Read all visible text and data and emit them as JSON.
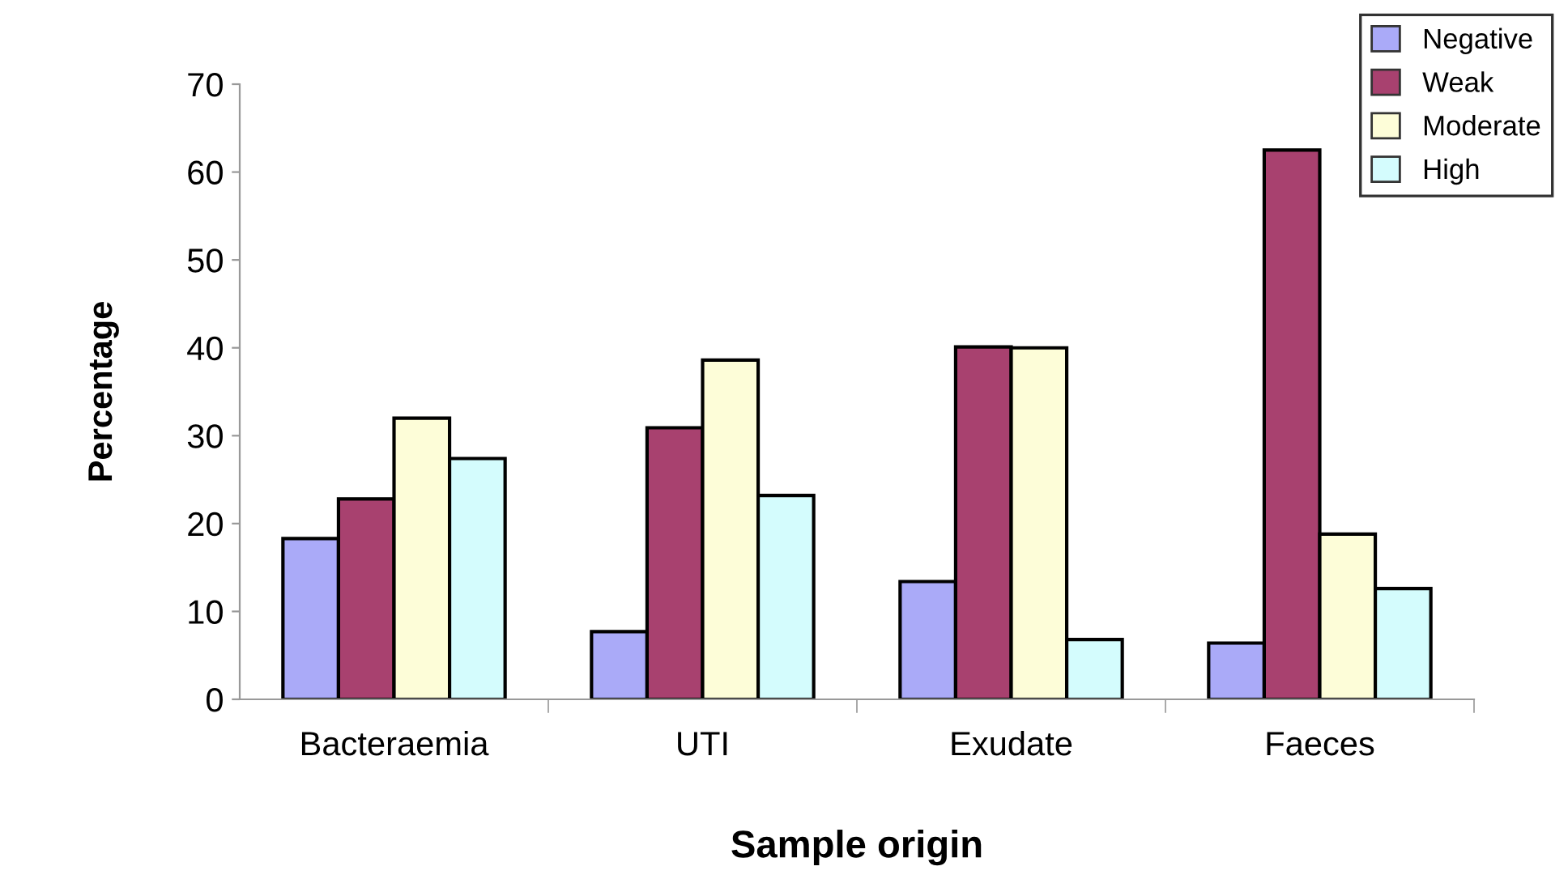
{
  "chart_data": {
    "type": "bar",
    "xlabel": "Sample origin",
    "ylabel": "Percentage",
    "categories": [
      "Bacteraemia",
      "UTI",
      "Exudate",
      "Faeces"
    ],
    "series": [
      {
        "name": "Negative",
        "color": "#aaaaf8",
        "values": [
          18.3,
          7.7,
          13.4,
          6.4
        ]
      },
      {
        "name": "Weak",
        "color": "#a8416f",
        "values": [
          22.8,
          30.9,
          40.1,
          62.5
        ]
      },
      {
        "name": "Moderate",
        "color": "#fdfdd8",
        "values": [
          32.0,
          38.6,
          40.0,
          18.8
        ]
      },
      {
        "name": "High",
        "color": "#d4fcfd",
        "values": [
          27.4,
          23.2,
          6.8,
          12.6
        ]
      }
    ],
    "ylim": [
      0,
      70
    ],
    "yticks": [
      0,
      10,
      20,
      30,
      40,
      50,
      60,
      70
    ],
    "grid": false,
    "legend": "top right"
  }
}
